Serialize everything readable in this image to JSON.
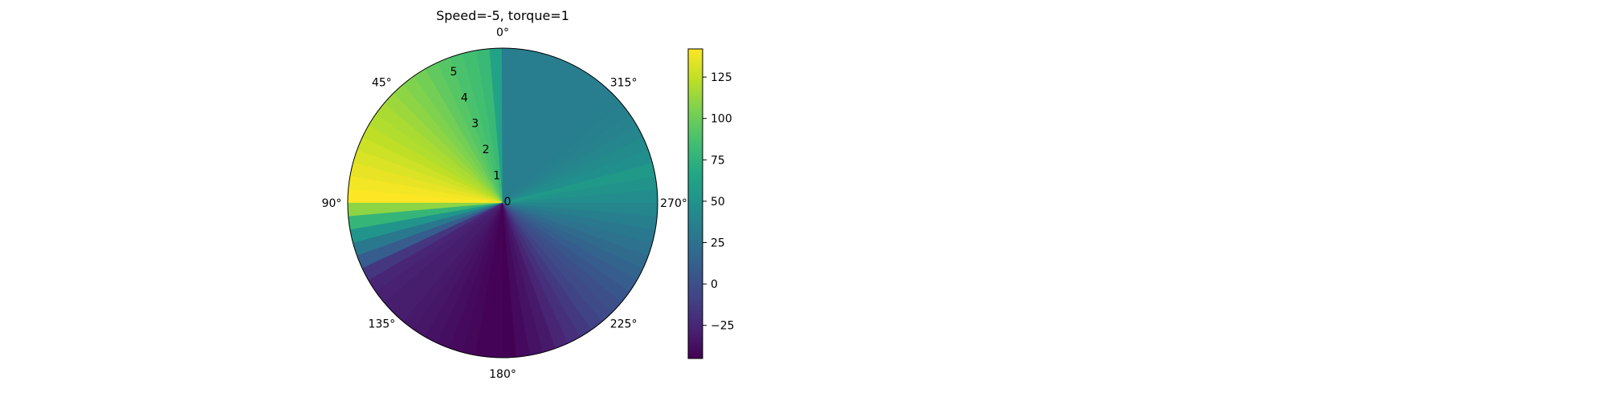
{
  "chart_data": {
    "type": "polar-heatmap",
    "title": "Speed=-5, torque=1",
    "theta_direction": "clockwise",
    "theta_zero_location": "top",
    "theta_ticks": [
      0,
      315,
      270,
      225,
      180,
      135,
      90,
      45
    ],
    "theta_tick_labels": [
      "0°",
      "315°",
      "270°",
      "225°",
      "180°",
      "135°",
      "90°",
      "45°"
    ],
    "r_ticks": [
      0,
      1,
      2,
      3,
      4,
      5
    ],
    "r_tick_labels": [
      "0",
      "1",
      "2",
      "3",
      "4",
      "5"
    ],
    "r_label_angle_deg": 22.5,
    "rlim": [
      0,
      5.5
    ],
    "wedge_width_deg": 5,
    "wedge_start_angles_deg": [
      0,
      5,
      10,
      15,
      20,
      25,
      30,
      35,
      40,
      45,
      50,
      55,
      60,
      65,
      70,
      75,
      80,
      85,
      90,
      95,
      100,
      105,
      110,
      115,
      120,
      125,
      130,
      135,
      140,
      145,
      150,
      155,
      160,
      165,
      170,
      175,
      180,
      185,
      190,
      195,
      200,
      205,
      210,
      215,
      220,
      225,
      230,
      235,
      240,
      245,
      250,
      255,
      260,
      265,
      270,
      275,
      280,
      285,
      290,
      295,
      300,
      305,
      310,
      315,
      320,
      325,
      330,
      335,
      340,
      345,
      350,
      355
    ],
    "values": [
      62,
      80,
      85,
      88,
      92,
      96,
      102,
      106,
      110,
      114,
      118,
      120,
      124,
      128,
      132,
      136,
      139,
      142,
      110,
      78,
      52,
      30,
      10,
      -15,
      -26,
      -28,
      -30,
      -30,
      -32,
      -34,
      -36,
      -38,
      -40,
      -42,
      -44,
      -44,
      -45,
      -40,
      -36,
      -32,
      -26,
      -20,
      -14,
      -8,
      -3,
      0,
      5,
      10,
      15,
      20,
      25,
      30,
      35,
      40,
      45,
      50,
      55,
      48,
      44,
      40,
      38,
      36,
      35,
      34,
      34,
      34,
      34,
      34,
      34,
      34,
      34,
      34
    ],
    "colorbar": {
      "vmin": -45,
      "vmax": 142,
      "ticks": [
        -25,
        0,
        25,
        50,
        75,
        100,
        125
      ],
      "tick_labels": [
        "−25",
        "0",
        "25",
        "50",
        "75",
        "100",
        "125"
      ],
      "colormap": "viridis"
    }
  }
}
